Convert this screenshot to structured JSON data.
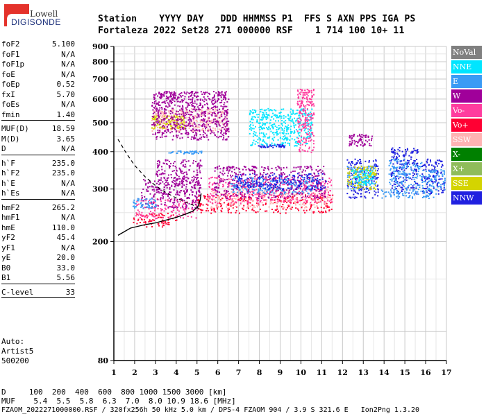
{
  "logo": {
    "line1": "Lowell",
    "line2": "DIGISONDE"
  },
  "header": {
    "labels": "Station    YYYY DAY   DDD HHMMSS P1  FFS S AXN PPS IGA PS",
    "values": "Fortaleza 2022 Set28 271 000000 RSF    1 714 100 10+ 11"
  },
  "params": [
    {
      "name": "foF2",
      "value": "5.100"
    },
    {
      "name": "foF1",
      "value": "N/A"
    },
    {
      "name": "foF1p",
      "value": "N/A"
    },
    {
      "name": "foE",
      "value": "N/A"
    },
    {
      "name": "foEp",
      "value": "0.52"
    },
    {
      "name": "fxI",
      "value": "5.70"
    },
    {
      "name": "foEs",
      "value": "N/A"
    },
    {
      "name": "fmin",
      "value": "1.40",
      "sep": true
    },
    {
      "name": "MUF(D)",
      "value": "18.59"
    },
    {
      "name": "M(D)",
      "value": "3.65"
    },
    {
      "name": "D",
      "value": "N/A",
      "sep": true
    },
    {
      "name": "h`F",
      "value": "235.0"
    },
    {
      "name": "h`F2",
      "value": "235.0"
    },
    {
      "name": "h`E",
      "value": "N/A"
    },
    {
      "name": "h`Es",
      "value": "N/A",
      "sep": true
    },
    {
      "name": "hmF2",
      "value": "265.2"
    },
    {
      "name": "hmF1",
      "value": "N/A"
    },
    {
      "name": "hmE",
      "value": "110.0"
    },
    {
      "name": "yF2",
      "value": "45.4"
    },
    {
      "name": "yF1",
      "value": "N/A"
    },
    {
      "name": "yE",
      "value": "20.0"
    },
    {
      "name": "B0",
      "value": "33.0"
    },
    {
      "name": "B1",
      "value": "5.56",
      "sep": true
    },
    {
      "name": "C-level",
      "value": "33",
      "sep": true
    }
  ],
  "auto": {
    "line1": "Auto:",
    "line2": "Artist5",
    "line3": "500200"
  },
  "bottom": {
    "d_line": "D     100  200  400  600  800 1000 1500 3000 [km]",
    "muf_line": "MUF    5.4  5.5  5.8  6.3  7.0  8.0 10.9 18.6 [MHz]",
    "file_line": "FZAOM_2022271000000.RSF / 320fx256h 50 kHz 5.0 km / DPS-4 FZAOM 904 / 3.9 S 321.6 E   Ion2Png 1.3.20"
  },
  "legend": [
    {
      "label": "NoVal",
      "color": "#808080"
    },
    {
      "label": "NNE",
      "color": "#00e5ff"
    },
    {
      "label": "E",
      "color": "#3a9bf5"
    },
    {
      "label": "W",
      "color": "#a0009a"
    },
    {
      "label": "Vo-",
      "color": "#ff3d9e"
    },
    {
      "label": "Vo+",
      "color": "#ff0033"
    },
    {
      "label": "SSW",
      "color": "#ffb3b3"
    },
    {
      "label": "X-",
      "color": "#008000"
    },
    {
      "label": "X+",
      "color": "#8fbc5a"
    },
    {
      "label": "SSE",
      "color": "#d4d400"
    },
    {
      "label": "NNW",
      "color": "#2020e0"
    }
  ],
  "chart_data": {
    "type": "scatter",
    "title": "",
    "xlabel": "",
    "ylabel": "",
    "xlim": [
      1,
      17
    ],
    "ylim": [
      80,
      900
    ],
    "y_scale": "log",
    "x_ticks": [
      "1",
      "2",
      "3",
      "4",
      "5",
      "6",
      "7",
      "8",
      "9",
      "10",
      "11",
      "12",
      "13",
      "14",
      "15",
      "16",
      "17"
    ],
    "y_ticks": [
      "80",
      "200",
      "300",
      "400",
      "500",
      "600",
      "700",
      "800",
      "900"
    ],
    "grid": true,
    "legend_position": "right",
    "clusters": [
      {
        "x": [
          1.9,
          4.0
        ],
        "y": [
          225,
          250
        ],
        "color": "#ff0033"
      },
      {
        "x": [
          2.0,
          5.0
        ],
        "y": [
          240,
          280
        ],
        "color": "#ff3d9e"
      },
      {
        "x": [
          2.3,
          5.2
        ],
        "y": [
          260,
          330
        ],
        "color": "#a0009a"
      },
      {
        "x": [
          3.0,
          5.2
        ],
        "y": [
          290,
          380
        ],
        "color": "#a0009a"
      },
      {
        "x": [
          1.8,
          3.0
        ],
        "y": [
          260,
          280
        ],
        "color": "#3a9bf5"
      },
      {
        "x": [
          3.6,
          5.2
        ],
        "y": [
          395,
          405
        ],
        "color": "#3a9bf5"
      },
      {
        "x": [
          2.8,
          6.5
        ],
        "y": [
          470,
          560
        ],
        "color": "#ffb3b3"
      },
      {
        "x": [
          2.8,
          4.4
        ],
        "y": [
          480,
          530
        ],
        "color": "#d4d400"
      },
      {
        "x": [
          2.8,
          6.5
        ],
        "y": [
          440,
          640
        ],
        "color": "#a0009a"
      },
      {
        "x": [
          5.0,
          11.5
        ],
        "y": [
          250,
          290
        ],
        "color": "#ff0033"
      },
      {
        "x": [
          5.5,
          11.5
        ],
        "y": [
          260,
          300
        ],
        "color": "#ffb3b3"
      },
      {
        "x": [
          5.5,
          11.5
        ],
        "y": [
          270,
          330
        ],
        "color": "#ff3d9e"
      },
      {
        "x": [
          5.8,
          11.2
        ],
        "y": [
          280,
          360
        ],
        "color": "#a0009a"
      },
      {
        "x": [
          6.6,
          10.8
        ],
        "y": [
          290,
          330
        ],
        "color": "#3a9bf5"
      },
      {
        "x": [
          6.8,
          11.2
        ],
        "y": [
          300,
          340
        ],
        "color": "#2020e0"
      },
      {
        "x": [
          7.9,
          9.2
        ],
        "y": [
          415,
          425
        ],
        "color": "#2020e0"
      },
      {
        "x": [
          7.5,
          10.5
        ],
        "y": [
          420,
          560
        ],
        "color": "#00e5ff"
      },
      {
        "x": [
          9.8,
          10.6
        ],
        "y": [
          400,
          650
        ],
        "color": "#ff3d9e"
      },
      {
        "x": [
          12.2,
          13.7
        ],
        "y": [
          280,
          380
        ],
        "color": "#2020e0"
      },
      {
        "x": [
          12.2,
          13.6
        ],
        "y": [
          300,
          360
        ],
        "color": "#3a9bf5"
      },
      {
        "x": [
          12.2,
          13.6
        ],
        "y": [
          300,
          360
        ],
        "color": "#d4d400"
      },
      {
        "x": [
          12.3,
          13.4
        ],
        "y": [
          420,
          460
        ],
        "color": "#a0009a"
      },
      {
        "x": [
          12.4,
          13.5
        ],
        "y": [
          310,
          350
        ],
        "color": "#00e5ff"
      },
      {
        "x": [
          14.3,
          15.6
        ],
        "y": [
          290,
          420
        ],
        "color": "#2020e0"
      },
      {
        "x": [
          14.2,
          15.8
        ],
        "y": [
          300,
          380
        ],
        "color": "#3a9bf5"
      },
      {
        "x": [
          15.8,
          16.9
        ],
        "y": [
          290,
          380
        ],
        "color": "#2020e0"
      },
      {
        "x": [
          15.8,
          16.9
        ],
        "y": [
          300,
          350
        ],
        "color": "#3a9bf5"
      },
      {
        "x": [
          13.8,
          16.5
        ],
        "y": [
          280,
          300
        ],
        "color": "#3a9bf5"
      }
    ],
    "profile_dashed": [
      [
        1.2,
        440
      ],
      [
        1.6,
        395
      ],
      [
        2.0,
        360
      ],
      [
        2.5,
        330
      ],
      [
        3.0,
        308
      ],
      [
        3.5,
        292
      ],
      [
        4.0,
        280
      ],
      [
        4.5,
        270
      ],
      [
        5.0,
        262
      ],
      [
        5.1,
        255
      ]
    ],
    "trace_solid": [
      [
        1.2,
        210
      ],
      [
        1.8,
        222
      ],
      [
        2.5,
        228
      ],
      [
        3.0,
        231
      ],
      [
        3.5,
        236
      ],
      [
        4.0,
        241
      ],
      [
        4.5,
        248
      ],
      [
        4.8,
        253
      ],
      [
        5.05,
        262
      ],
      [
        5.15,
        275
      ],
      [
        5.2,
        290
      ]
    ]
  }
}
